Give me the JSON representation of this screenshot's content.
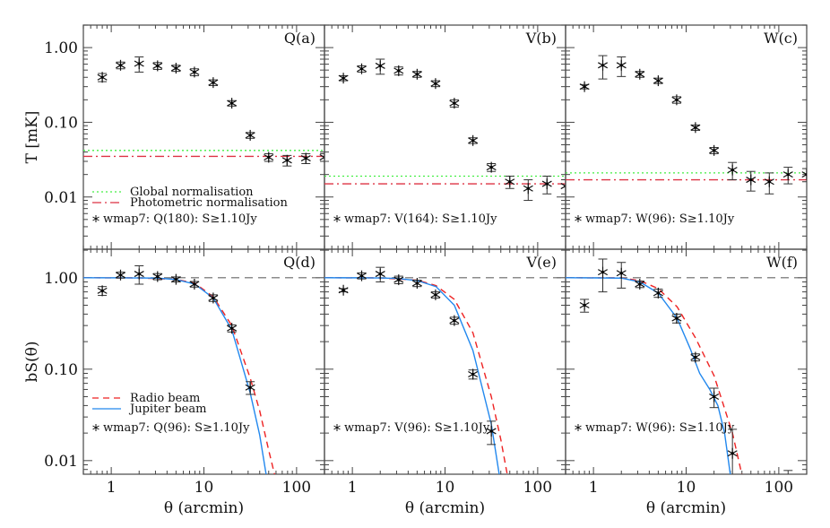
{
  "chart_data": [
    {
      "type": "scatter",
      "panel": "Q(a)",
      "row": "top",
      "ylabel": "T [mK]",
      "xlabel": "",
      "xscale": "log",
      "yscale": "log",
      "xlim": [
        0.5,
        200
      ],
      "ylim": [
        0.002,
        2.0
      ],
      "yticks": [
        "1.00",
        "0.10",
        "0.01"
      ],
      "points": {
        "x": [
          0.8,
          1.26,
          2,
          3.16,
          5,
          7.9,
          12.6,
          20,
          31.6,
          50,
          79,
          126,
          200
        ],
        "y": [
          0.4,
          0.58,
          0.61,
          0.57,
          0.53,
          0.47,
          0.34,
          0.18,
          0.067,
          0.034,
          0.031,
          0.033,
          0.034
        ],
        "err": [
          0.05,
          0.06,
          0.14,
          0.06,
          0.05,
          0.05,
          0.03,
          0.015,
          0.006,
          0.004,
          0.005,
          0.005,
          0.004
        ]
      },
      "hlines": [
        {
          "name": "Global normalisation",
          "y": 0.042,
          "color": "#44ee44",
          "style": "dotted"
        },
        {
          "name": "Photometric normalisation",
          "y": 0.035,
          "color": "#dd3344",
          "style": "dashdot"
        }
      ],
      "series_label": "wmap7: Q(180): S≥1.10Jy"
    },
    {
      "type": "scatter",
      "panel": "V(b)",
      "row": "top",
      "xscale": "log",
      "yscale": "log",
      "xlim": [
        0.5,
        200
      ],
      "ylim": [
        0.002,
        2.0
      ],
      "points": {
        "x": [
          0.8,
          1.26,
          2,
          3.16,
          5,
          7.9,
          12.6,
          20,
          31.6,
          50,
          79,
          126,
          200
        ],
        "y": [
          0.39,
          0.52,
          0.57,
          0.49,
          0.44,
          0.33,
          0.18,
          0.057,
          0.025,
          0.016,
          0.013,
          0.015,
          0.014
        ],
        "err": [
          0.03,
          0.05,
          0.13,
          0.06,
          0.04,
          0.03,
          0.02,
          0.005,
          0.003,
          0.003,
          0.004,
          0.004,
          0.003
        ]
      },
      "hlines": [
        {
          "y": 0.019,
          "color": "#44ee44",
          "style": "dotted"
        },
        {
          "y": 0.015,
          "color": "#dd3344",
          "style": "dashdot"
        }
      ],
      "series_label": "wmap7: V(164): S≥1.10Jy"
    },
    {
      "type": "scatter",
      "panel": "W(c)",
      "row": "top",
      "xscale": "log",
      "yscale": "log",
      "xlim": [
        0.5,
        200
      ],
      "ylim": [
        0.002,
        2.0
      ],
      "points": {
        "x": [
          0.8,
          1.26,
          2,
          3.16,
          5,
          7.9,
          12.6,
          20,
          31.6,
          50,
          79,
          126,
          200
        ],
        "y": [
          0.3,
          0.58,
          0.58,
          0.44,
          0.36,
          0.2,
          0.085,
          0.042,
          0.023,
          0.017,
          0.016,
          0.02,
          0.02
        ],
        "err": [
          0.02,
          0.2,
          0.17,
          0.04,
          0.03,
          0.02,
          0.007,
          0.004,
          0.006,
          0.005,
          0.005,
          0.005,
          0.004
        ]
      },
      "hlines": [
        {
          "y": 0.021,
          "color": "#44ee44",
          "style": "dotted"
        },
        {
          "y": 0.017,
          "color": "#dd3344",
          "style": "dashdot"
        }
      ],
      "series_label": "wmap7: W(96): S≥1.10Jy"
    },
    {
      "type": "line",
      "panel": "Q(d)",
      "row": "bottom",
      "ylabel": "bS(θ)",
      "xlabel": "θ (arcmin)",
      "xscale": "log",
      "yscale": "log",
      "xlim": [
        0.5,
        200
      ],
      "ylim": [
        0.0071,
        2.05
      ],
      "yticks": [
        "1.00",
        "0.10",
        "0.01"
      ],
      "xticks": [
        "1",
        "10",
        "100"
      ],
      "reference_line": 1.0,
      "points": {
        "x": [
          0.8,
          1.26,
          2,
          3.16,
          5,
          7.9,
          12.6,
          20,
          31.6
        ],
        "y": [
          0.72,
          1.07,
          1.1,
          1.03,
          0.96,
          0.85,
          0.6,
          0.28,
          0.063
        ],
        "err": [
          0.08,
          0.08,
          0.25,
          0.08,
          0.06,
          0.06,
          0.05,
          0.025,
          0.01
        ]
      },
      "series": [
        {
          "name": "Radio beam",
          "color": "#ee2222",
          "style": "dashed",
          "x": [
            0.5,
            2,
            5,
            8,
            12.6,
            20,
            31.6,
            40,
            50,
            58
          ],
          "y": [
            1,
            0.995,
            0.96,
            0.87,
            0.62,
            0.3,
            0.08,
            0.035,
            0.013,
            0.007
          ]
        },
        {
          "name": "Jupiter beam",
          "color": "#2288ee",
          "style": "solid",
          "x": [
            0.5,
            2,
            3.16,
            5,
            8,
            12.6,
            20,
            31.6,
            40,
            47
          ],
          "y": [
            1,
            0.995,
            0.99,
            0.955,
            0.85,
            0.6,
            0.27,
            0.055,
            0.019,
            0.007
          ]
        }
      ],
      "series_label": "wmap7: Q(96): S≥1.10Jy"
    },
    {
      "type": "line",
      "panel": "V(e)",
      "row": "bottom",
      "xlabel": "θ (arcmin)",
      "xscale": "log",
      "yscale": "log",
      "xlim": [
        0.5,
        200
      ],
      "ylim": [
        0.0071,
        2.05
      ],
      "xticks": [
        "1",
        "10",
        "100"
      ],
      "reference_line": 1.0,
      "points": {
        "x": [
          0.8,
          1.26,
          2,
          3.16,
          5,
          7.9,
          12.6,
          20,
          31.6
        ],
        "y": [
          0.73,
          1.05,
          1.1,
          0.95,
          0.87,
          0.65,
          0.34,
          0.088,
          0.021
        ],
        "err": [
          0.03,
          0.08,
          0.2,
          0.09,
          0.07,
          0.05,
          0.03,
          0.01,
          0.006
        ]
      },
      "series": [
        {
          "name": "Radio beam",
          "color": "#ee2222",
          "style": "dashed",
          "x": [
            0.5,
            2,
            5,
            8,
            12.6,
            20,
            31.6,
            40,
            47
          ],
          "y": [
            1,
            0.995,
            0.94,
            0.82,
            0.58,
            0.25,
            0.05,
            0.017,
            0.007
          ]
        },
        {
          "name": "Jupiter beam",
          "color": "#2288ee",
          "style": "solid",
          "x": [
            0.5,
            2,
            3.16,
            5,
            8,
            12.6,
            20,
            31.6,
            38.5
          ],
          "y": [
            1,
            0.995,
            0.98,
            0.93,
            0.8,
            0.5,
            0.16,
            0.025,
            0.007
          ]
        }
      ],
      "series_label": "wmap7: V(96): S≥1.10Jy"
    },
    {
      "type": "line",
      "panel": "W(f)",
      "row": "bottom",
      "xlabel": "θ (arcmin)",
      "xscale": "log",
      "yscale": "log",
      "xlim": [
        0.5,
        200
      ],
      "ylim": [
        0.0071,
        2.05
      ],
      "xticks": [
        "1",
        "10",
        "100"
      ],
      "reference_line": 1.0,
      "points": {
        "x": [
          0.8,
          1.26,
          2,
          3.16,
          5,
          7.9,
          12.6,
          20,
          31.6,
          126
        ],
        "y": [
          0.5,
          1.15,
          1.12,
          0.85,
          0.68,
          0.36,
          0.135,
          0.05,
          0.012,
          0.005
        ],
        "err": [
          0.08,
          0.45,
          0.35,
          0.07,
          0.07,
          0.04,
          0.012,
          0.012,
          0.01,
          0.0028
        ]
      },
      "series": [
        {
          "name": "Radio beam",
          "color": "#ee2222",
          "style": "dashed",
          "x": [
            0.5,
            2,
            3.16,
            5,
            8,
            12.6,
            20,
            31.6,
            40
          ],
          "y": [
            1,
            0.995,
            0.93,
            0.76,
            0.48,
            0.22,
            0.085,
            0.02,
            0.007
          ]
        },
        {
          "name": "Jupiter beam",
          "color": "#2288ee",
          "style": "solid",
          "x": [
            0.5,
            2,
            3.16,
            5,
            8,
            11,
            14,
            18,
            22,
            26,
            30
          ],
          "y": [
            1,
            0.99,
            0.9,
            0.68,
            0.36,
            0.17,
            0.09,
            0.06,
            0.04,
            0.02,
            0.007
          ]
        }
      ],
      "series_label": "wmap7: W(96): S≥1.10Jy"
    }
  ]
}
